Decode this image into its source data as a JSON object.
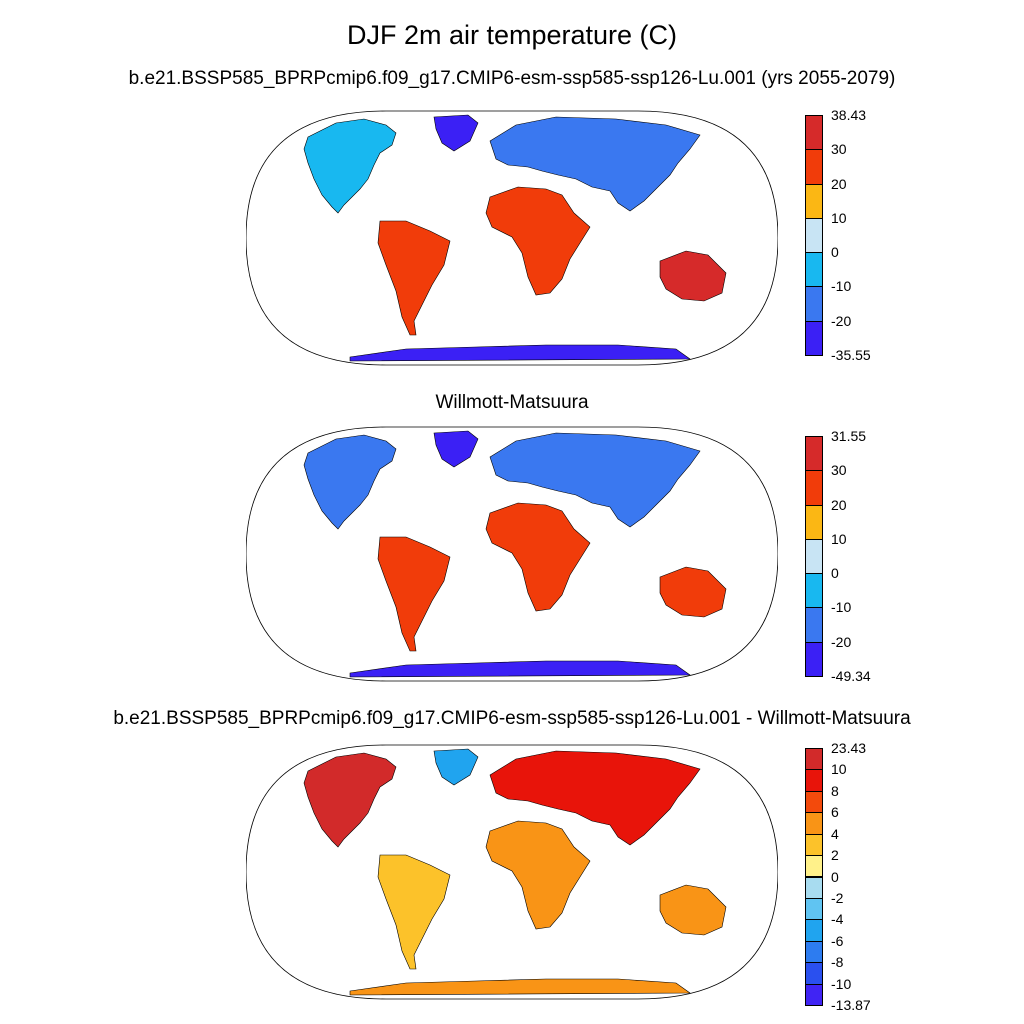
{
  "figure": {
    "title": "DJF 2m air temperature (C)"
  },
  "panels": [
    {
      "id": "model",
      "title": "b.e21.BSSP585_BPRPcmip6.f09_g17.CMIP6-esm-ssp585-ssp126-Lu.001 (yrs 2055-2079)",
      "colorbar": {
        "labels": [
          "38.43",
          "30",
          "20",
          "10",
          "0",
          "-10",
          "-20",
          "-35.55"
        ],
        "colors": [
          "#d62a2a",
          "#f13c0a",
          "#fbb714",
          "#c8e4f4",
          "#18b8f0",
          "#3a78f0",
          "#3b20f5"
        ]
      }
    },
    {
      "id": "observation",
      "title": "Willmott-Matsuura",
      "colorbar": {
        "labels": [
          "31.55",
          "30",
          "20",
          "10",
          "0",
          "-10",
          "-20",
          "-49.34"
        ],
        "colors": [
          "#d62a2a",
          "#f13c0a",
          "#fbb714",
          "#c8e4f4",
          "#18b8f0",
          "#3a78f0",
          "#3b20f5"
        ]
      }
    },
    {
      "id": "difference",
      "title": "b.e21.BSSP585_BPRPcmip6.f09_g17.CMIP6-esm-ssp585-ssp126-Lu.001 - Willmott-Matsuura",
      "colorbar": {
        "labels": [
          "23.43",
          "10",
          "8",
          "6",
          "4",
          "2",
          "0",
          "-2",
          "-4",
          "-6",
          "-8",
          "-10",
          "-13.87"
        ],
        "colors": [
          "#d22a2a",
          "#e8140a",
          "#f34a0c",
          "#f99416",
          "#fcc22a",
          "#fff18a",
          "#a8dcf0",
          "#60c4f2",
          "#20a4ef",
          "#2d7cf0",
          "#2a50ef",
          "#4024f4"
        ]
      }
    }
  ],
  "map_colors": {
    "land_ocean_boundary": "#000000",
    "projection_frame": "#000000"
  }
}
